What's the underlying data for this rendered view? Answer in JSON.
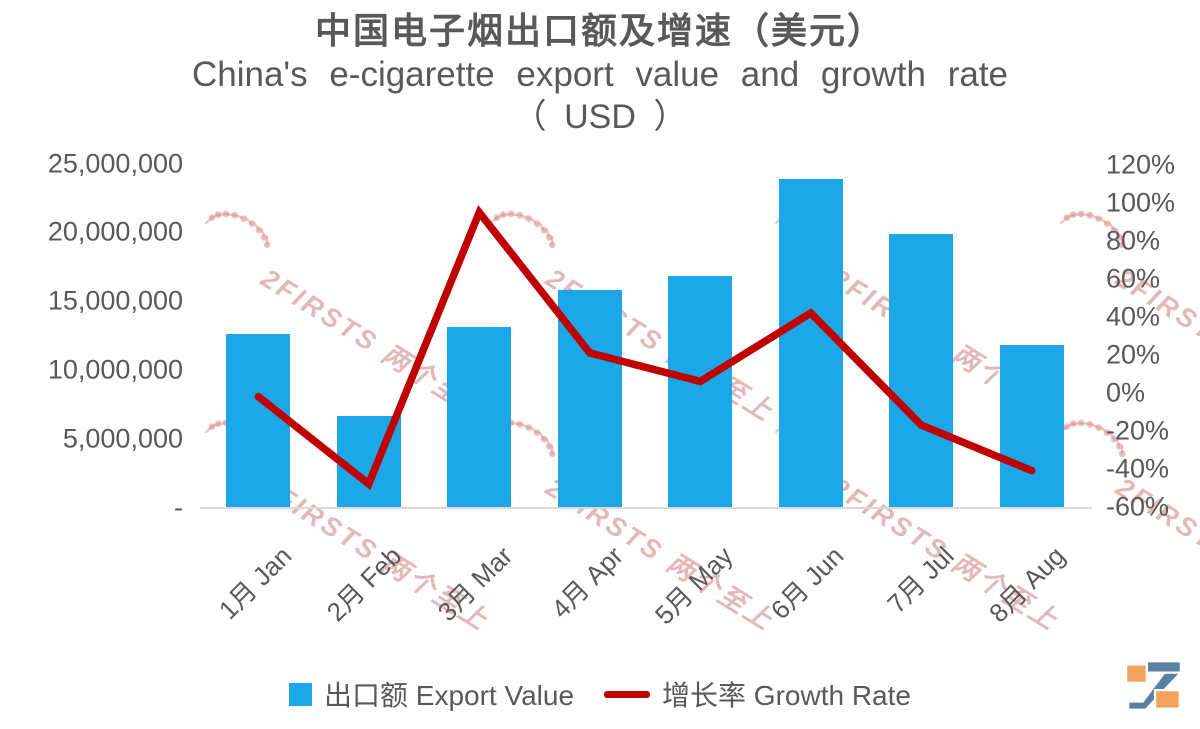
{
  "title": {
    "line1_zh": "中国电子烟出口额及增速（美元）",
    "line2_en": "China's e-cigarette export value and growth rate",
    "line3_usd": "（ USD ）"
  },
  "watermark": {
    "text": "2FIRSTS 两个至上"
  },
  "legend": {
    "bar_label": "出口额 Export Value",
    "line_label": "增长率 Growth Rate"
  },
  "colors": {
    "bar_blue": "#1BA7E8",
    "line_red": "#C00000",
    "axis_gray": "#D9D9D9",
    "text_gray": "#595959",
    "watermark_pink": "#CA807E",
    "logo_blue": "#5C80A1",
    "logo_orange": "#F2A45F"
  },
  "chart_data": {
    "type": "bar",
    "subtype": "combo bar+line, dual axis",
    "title": "中国电子烟出口额及增速（美元） / China's e-cigarette export value and growth rate （ USD ）",
    "categories": [
      "1月 Jan",
      "2月 Feb",
      "3月 Mar",
      "4月 Apr",
      "5月 May",
      "6月 Jun",
      "7月 Jul",
      "8月 Aug"
    ],
    "series": [
      {
        "name": "出口额 Export Value",
        "type": "bar",
        "axis": "left",
        "color": "#1BA7E8",
        "values": [
          12600000,
          6700000,
          13100000,
          15800000,
          16800000,
          23900000,
          19900000,
          11800000
        ]
      },
      {
        "name": "增长率 Growth Rate",
        "type": "line",
        "axis": "right",
        "color": "#C00000",
        "values_pct": [
          -2,
          -48,
          95,
          21,
          6,
          42,
          -17,
          -41
        ]
      }
    ],
    "left_axis": {
      "ticks": [
        "25,000,000",
        "20,000,000",
        "15,000,000",
        "10,000,000",
        "5,000,000",
        "-"
      ],
      "min": 0,
      "max": 25000000
    },
    "right_axis": {
      "ticks": [
        "120%",
        "100%",
        "80%",
        "60%",
        "40%",
        "20%",
        "0%",
        "-20%",
        "-40%",
        "-60%"
      ],
      "min": -60,
      "max": 120
    },
    "grid": false,
    "legend_position": "bottom"
  }
}
